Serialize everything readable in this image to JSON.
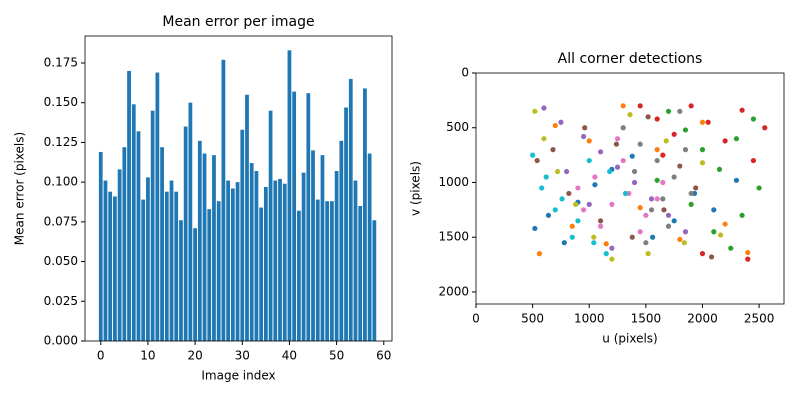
{
  "chart_data": [
    {
      "type": "bar",
      "title": "Mean error per image",
      "x_label": "Image index",
      "y_label": "Mean error (pixels)",
      "color": "#1f77b4",
      "x": [
        0,
        1,
        2,
        3,
        4,
        5,
        6,
        7,
        8,
        9,
        10,
        11,
        12,
        13,
        14,
        15,
        16,
        17,
        18,
        19,
        20,
        21,
        22,
        23,
        24,
        25,
        26,
        27,
        28,
        29,
        30,
        31,
        32,
        33,
        34,
        35,
        36,
        37,
        38,
        39,
        40,
        41,
        42,
        43,
        44,
        45,
        46,
        47,
        48,
        49,
        50,
        51,
        52,
        53,
        54,
        55,
        56,
        57,
        58
      ],
      "values": [
        0.119,
        0.101,
        0.094,
        0.091,
        0.108,
        0.122,
        0.17,
        0.149,
        0.132,
        0.089,
        0.103,
        0.145,
        0.169,
        0.122,
        0.094,
        0.101,
        0.094,
        0.076,
        0.135,
        0.15,
        0.071,
        0.126,
        0.118,
        0.083,
        0.117,
        0.088,
        0.177,
        0.101,
        0.096,
        0.1,
        0.133,
        0.155,
        0.112,
        0.107,
        0.084,
        0.097,
        0.145,
        0.101,
        0.102,
        0.099,
        0.183,
        0.157,
        0.082,
        0.106,
        0.156,
        0.12,
        0.089,
        0.117,
        0.088,
        0.088,
        0.107,
        0.126,
        0.147,
        0.165,
        0.101,
        0.085,
        0.159,
        0.118,
        0.076
      ],
      "xlim": [
        -3.34,
        61.74
      ],
      "xticks": [
        0,
        10,
        20,
        30,
        40,
        50,
        60
      ],
      "ylim": [
        0,
        0.192
      ],
      "yticks": [
        {
          "value": 0,
          "label": "0.000"
        },
        {
          "value": 0.025,
          "label": "0.025"
        },
        {
          "value": 0.05,
          "label": "0.050"
        },
        {
          "value": 0.075,
          "label": "0.075"
        },
        {
          "value": 0.1,
          "label": "0.100"
        },
        {
          "value": 0.125,
          "label": "0.125"
        },
        {
          "value": 0.15,
          "label": "0.150"
        },
        {
          "value": 0.175,
          "label": "0.175"
        }
      ]
    },
    {
      "type": "scatter",
      "title": "All corner detections",
      "x_label": "u (pixels)",
      "y_label": "v (pixels)",
      "xlim": [
        0,
        2720
      ],
      "xticks": [
        0,
        500,
        1000,
        1500,
        2000,
        2500
      ],
      "ylim": [
        2110,
        0
      ],
      "yticks": [
        0,
        500,
        1000,
        1500,
        2000
      ],
      "y_inverted": true,
      "series": [
        {
          "color": "#1f77b4",
          "x": [
            520,
            640,
            780,
            900,
            1050,
            1200,
            1380,
            1560,
            1750,
            1930,
            2100,
            2300
          ],
          "values": [
            1420,
            1300,
            1550,
            1180,
            1020,
            880,
            760,
            1500,
            1350,
            1100,
            1250,
            980
          ]
        },
        {
          "color": "#ff7f0e",
          "x": [
            560,
            700,
            850,
            1000,
            1150,
            1300,
            1450,
            1600,
            1800,
            2000,
            2200,
            2400
          ],
          "values": [
            1650,
            480,
            1400,
            620,
            1560,
            300,
            1230,
            700,
            1520,
            450,
            1380,
            1640
          ]
        },
        {
          "color": "#2ca02c",
          "x": [
            1700,
            1850,
            2000,
            2150,
            2300,
            2450,
            2500,
            1900,
            2100,
            2350,
            1600,
            2250
          ],
          "values": [
            350,
            520,
            700,
            880,
            600,
            420,
            1050,
            1200,
            1450,
            1300,
            980,
            1600
          ]
        },
        {
          "color": "#d62728",
          "x": [
            1450,
            1600,
            1750,
            1900,
            2050,
            2200,
            2350,
            2450,
            2550,
            1650,
            2000,
            2400
          ],
          "values": [
            300,
            420,
            560,
            300,
            450,
            620,
            340,
            800,
            500,
            750,
            1650,
            1700
          ]
        },
        {
          "color": "#9467bd",
          "x": [
            600,
            750,
            950,
            1100,
            1250,
            1400,
            1550,
            1700,
            1850,
            1200,
            1000,
            800
          ],
          "values": [
            320,
            450,
            580,
            720,
            860,
            1000,
            1150,
            1300,
            1450,
            1600,
            1200,
            900
          ]
        },
        {
          "color": "#8c564b",
          "x": [
            540,
            680,
            820,
            960,
            1100,
            1240,
            1380,
            1520,
            1660,
            1800,
            1940,
            2080
          ],
          "values": [
            800,
            700,
            1100,
            500,
            1350,
            650,
            1500,
            400,
            1250,
            850,
            1050,
            1680
          ]
        },
        {
          "color": "#e377c2",
          "x": [
            900,
            1050,
            1200,
            1350,
            1500,
            1650,
            1300,
            1100,
            1450,
            1600,
            950,
            1250
          ],
          "values": [
            1050,
            950,
            1200,
            1100,
            1300,
            1000,
            800,
            1400,
            1450,
            1150,
            1250,
            600
          ]
        },
        {
          "color": "#7f7f7f",
          "x": [
            1300,
            1450,
            1600,
            1750,
            1900,
            1550,
            1700,
            1400,
            1850,
            1650,
            1500,
            1800
          ],
          "values": [
            500,
            650,
            800,
            950,
            1100,
            1250,
            1400,
            900,
            700,
            1150,
            1550,
            350
          ]
        },
        {
          "color": "#bcbd22",
          "x": [
            520,
            600,
            720,
            880,
            1040,
            1200,
            1360,
            1520,
            1680,
            1840,
            2000,
            2160
          ],
          "values": [
            350,
            600,
            900,
            1200,
            1500,
            1700,
            380,
            1650,
            620,
            1550,
            820,
            1480
          ]
        },
        {
          "color": "#17becf",
          "x": [
            500,
            620,
            760,
            900,
            1040,
            1180,
            1320,
            700,
            850,
            1000,
            580,
            1150
          ],
          "values": [
            750,
            950,
            1150,
            1350,
            1550,
            900,
            1100,
            1250,
            1500,
            800,
            1050,
            1650
          ]
        }
      ]
    }
  ]
}
